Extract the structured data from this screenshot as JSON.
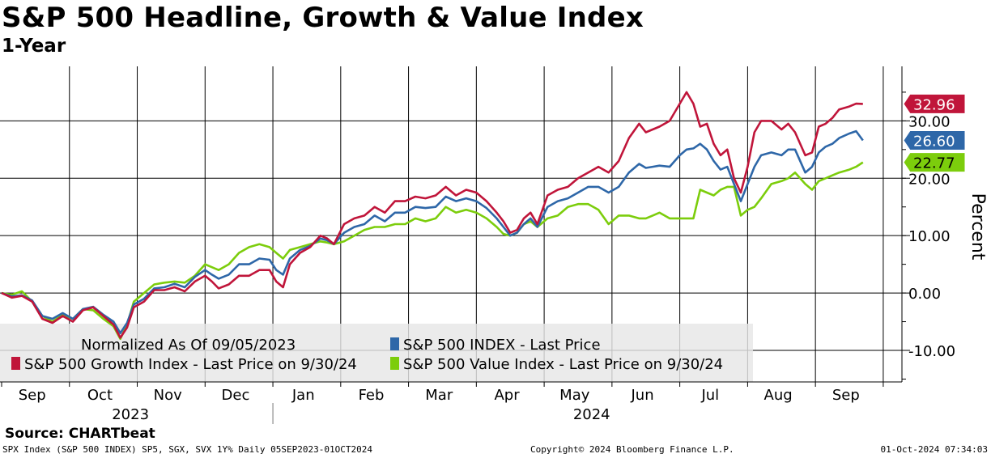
{
  "title": "S&P 500 Headline, Growth & Value Index",
  "subtitle": "1-Year",
  "source": "Source: CHARTbeat",
  "footer": {
    "left": "SPX Index (S&P 500 INDEX) SP5, SGX, SVX 1Y%  Daily 05SEP2023-01OCT2024",
    "center": "Copyright© 2024 Bloomberg Finance L.P.",
    "right": "01-Oct-2024 07:34:03"
  },
  "chart_data": {
    "type": "line",
    "title": "S&P 500 Headline, Growth & Value Index",
    "subtitle": "1-Year",
    "ylabel": "Percent",
    "ylim": [
      -15.5,
      39.5
    ],
    "yticks": [
      -10,
      0,
      10,
      20,
      30
    ],
    "ytick_labels": [
      "-10.00",
      "0.00",
      "10.00",
      "20.00",
      "30.00"
    ],
    "grid": true,
    "xlim": [
      0,
      13.1
    ],
    "month_ticks": [
      0,
      1,
      2,
      3,
      4,
      5,
      6,
      7,
      8,
      9,
      10,
      11,
      12,
      13
    ],
    "month_labels": [
      "Sep",
      "Oct",
      "Nov",
      "Dec",
      "Jan",
      "Feb",
      "Mar",
      "Apr",
      "May",
      "Jun",
      "Jul",
      "Aug",
      "Sep"
    ],
    "month_label_positions": [
      0.45,
      1.45,
      2.45,
      3.45,
      4.45,
      5.45,
      6.45,
      7.45,
      8.45,
      9.45,
      10.45,
      11.45,
      12.45
    ],
    "year_labels": [
      {
        "label": "2023",
        "x": 1.9
      },
      {
        "label": "2024",
        "x": 8.7
      }
    ],
    "year_divider_x": 4.0,
    "legend": {
      "position": "bottom-left",
      "note": "Normalized As Of 09/05/2023",
      "entries": [
        {
          "name": "S&P 500 INDEX - Last Price",
          "color": "#2e67a8"
        },
        {
          "name": "S&P 500 Growth Index - Last Price on 9/30/24",
          "color": "#c0153a"
        },
        {
          "name": "S&P 500 Value Index - Last Price on 9/30/24",
          "color": "#7ccd0c"
        }
      ]
    },
    "series": [
      {
        "name": "S&P 500 Growth Index - Last Price on 9/30/24",
        "color": "#c0153a",
        "last": 32.96,
        "last_label": "32.96",
        "points": [
          [
            0,
            0
          ],
          [
            0.15,
            -0.8
          ],
          [
            0.3,
            -0.5
          ],
          [
            0.45,
            -1.5
          ],
          [
            0.6,
            -4.5
          ],
          [
            0.75,
            -5.2
          ],
          [
            0.9,
            -4
          ],
          [
            1.05,
            -5
          ],
          [
            1.2,
            -3
          ],
          [
            1.35,
            -2.5
          ],
          [
            1.5,
            -4
          ],
          [
            1.65,
            -5.5
          ],
          [
            1.75,
            -7.8
          ],
          [
            1.85,
            -6
          ],
          [
            1.95,
            -2.5
          ],
          [
            2.1,
            -1.5
          ],
          [
            2.25,
            0.5
          ],
          [
            2.4,
            0.5
          ],
          [
            2.55,
            1
          ],
          [
            2.7,
            0.3
          ],
          [
            2.85,
            2
          ],
          [
            3.0,
            3
          ],
          [
            3.1,
            2
          ],
          [
            3.2,
            0.8
          ],
          [
            3.35,
            1.5
          ],
          [
            3.5,
            3
          ],
          [
            3.65,
            3
          ],
          [
            3.8,
            4
          ],
          [
            3.95,
            4
          ],
          [
            4.05,
            2
          ],
          [
            4.15,
            1
          ],
          [
            4.25,
            5
          ],
          [
            4.4,
            7
          ],
          [
            4.55,
            8
          ],
          [
            4.7,
            10
          ],
          [
            4.8,
            9.5
          ],
          [
            4.9,
            8.5
          ],
          [
            5.05,
            12
          ],
          [
            5.2,
            13
          ],
          [
            5.35,
            13.5
          ],
          [
            5.5,
            15
          ],
          [
            5.65,
            14
          ],
          [
            5.8,
            16
          ],
          [
            5.95,
            16
          ],
          [
            6.1,
            16.8
          ],
          [
            6.25,
            16.5
          ],
          [
            6.4,
            17
          ],
          [
            6.55,
            18.5
          ],
          [
            6.7,
            17
          ],
          [
            6.85,
            18
          ],
          [
            7.0,
            17.5
          ],
          [
            7.15,
            16
          ],
          [
            7.3,
            14
          ],
          [
            7.4,
            12.5
          ],
          [
            7.5,
            10.5
          ],
          [
            7.6,
            11
          ],
          [
            7.7,
            13
          ],
          [
            7.8,
            14
          ],
          [
            7.9,
            12
          ],
          [
            8.05,
            17
          ],
          [
            8.2,
            18
          ],
          [
            8.35,
            18.5
          ],
          [
            8.5,
            20
          ],
          [
            8.65,
            21
          ],
          [
            8.8,
            22
          ],
          [
            8.95,
            21
          ],
          [
            9.1,
            23
          ],
          [
            9.25,
            27
          ],
          [
            9.4,
            29.5
          ],
          [
            9.5,
            28
          ],
          [
            9.6,
            28.5
          ],
          [
            9.7,
            29
          ],
          [
            9.85,
            30
          ],
          [
            10.0,
            33
          ],
          [
            10.1,
            35
          ],
          [
            10.2,
            33
          ],
          [
            10.3,
            29
          ],
          [
            10.4,
            29.5
          ],
          [
            10.5,
            26
          ],
          [
            10.6,
            24
          ],
          [
            10.7,
            25
          ],
          [
            10.8,
            20
          ],
          [
            10.9,
            17.5
          ],
          [
            11.0,
            22
          ],
          [
            11.1,
            28
          ],
          [
            11.2,
            30
          ],
          [
            11.35,
            30
          ],
          [
            11.5,
            28.5
          ],
          [
            11.6,
            29.5
          ],
          [
            11.7,
            28
          ],
          [
            11.85,
            24
          ],
          [
            11.95,
            24.5
          ],
          [
            12.05,
            29
          ],
          [
            12.15,
            29.5
          ],
          [
            12.25,
            30.5
          ],
          [
            12.35,
            32
          ],
          [
            12.5,
            32.5
          ],
          [
            12.6,
            33
          ],
          [
            12.7,
            32.96
          ]
        ]
      },
      {
        "name": "S&P 500 INDEX - Last Price",
        "color": "#2e67a8",
        "last": 26.6,
        "last_label": "26.60",
        "points": [
          [
            0,
            0
          ],
          [
            0.15,
            -0.6
          ],
          [
            0.3,
            -0.4
          ],
          [
            0.45,
            -1.3
          ],
          [
            0.6,
            -4
          ],
          [
            0.75,
            -4.5
          ],
          [
            0.9,
            -3.5
          ],
          [
            1.05,
            -4.5
          ],
          [
            1.2,
            -2.8
          ],
          [
            1.35,
            -2.4
          ],
          [
            1.5,
            -3.8
          ],
          [
            1.65,
            -5
          ],
          [
            1.75,
            -7
          ],
          [
            1.85,
            -5.2
          ],
          [
            1.95,
            -2
          ],
          [
            2.1,
            -1
          ],
          [
            2.25,
            0.8
          ],
          [
            2.4,
            1
          ],
          [
            2.55,
            1.6
          ],
          [
            2.7,
            1
          ],
          [
            2.85,
            2.8
          ],
          [
            3.0,
            4
          ],
          [
            3.1,
            3.2
          ],
          [
            3.2,
            2.5
          ],
          [
            3.35,
            3.2
          ],
          [
            3.5,
            5
          ],
          [
            3.65,
            5
          ],
          [
            3.8,
            6
          ],
          [
            3.95,
            5.8
          ],
          [
            4.05,
            4
          ],
          [
            4.15,
            3.2
          ],
          [
            4.25,
            6
          ],
          [
            4.4,
            7.5
          ],
          [
            4.55,
            8.2
          ],
          [
            4.7,
            9.5
          ],
          [
            4.8,
            9.2
          ],
          [
            4.9,
            8.5
          ],
          [
            5.05,
            10.5
          ],
          [
            5.2,
            11.5
          ],
          [
            5.35,
            12
          ],
          [
            5.5,
            13.5
          ],
          [
            5.65,
            12.5
          ],
          [
            5.8,
            14
          ],
          [
            5.95,
            14
          ],
          [
            6.1,
            15
          ],
          [
            6.25,
            14.8
          ],
          [
            6.4,
            15
          ],
          [
            6.55,
            16.8
          ],
          [
            6.7,
            16
          ],
          [
            6.85,
            16.5
          ],
          [
            7.0,
            16
          ],
          [
            7.15,
            14.8
          ],
          [
            7.3,
            13
          ],
          [
            7.4,
            11.5
          ],
          [
            7.5,
            10
          ],
          [
            7.6,
            10.5
          ],
          [
            7.7,
            12
          ],
          [
            7.8,
            13
          ],
          [
            7.9,
            11.5
          ],
          [
            8.05,
            15
          ],
          [
            8.2,
            16
          ],
          [
            8.35,
            16.5
          ],
          [
            8.5,
            17.5
          ],
          [
            8.65,
            18.5
          ],
          [
            8.8,
            18.5
          ],
          [
            8.95,
            17.5
          ],
          [
            9.1,
            18.5
          ],
          [
            9.25,
            21
          ],
          [
            9.4,
            22.5
          ],
          [
            9.5,
            21.8
          ],
          [
            9.6,
            22
          ],
          [
            9.7,
            22.2
          ],
          [
            9.85,
            22
          ],
          [
            10.0,
            24
          ],
          [
            10.1,
            25
          ],
          [
            10.2,
            25.2
          ],
          [
            10.3,
            26
          ],
          [
            10.4,
            25
          ],
          [
            10.5,
            23
          ],
          [
            10.6,
            21.5
          ],
          [
            10.7,
            22
          ],
          [
            10.8,
            19
          ],
          [
            10.9,
            16
          ],
          [
            11.0,
            19
          ],
          [
            11.1,
            22
          ],
          [
            11.2,
            24
          ],
          [
            11.35,
            24.5
          ],
          [
            11.5,
            24
          ],
          [
            11.6,
            25
          ],
          [
            11.7,
            25
          ],
          [
            11.85,
            21
          ],
          [
            11.95,
            22
          ],
          [
            12.05,
            24.5
          ],
          [
            12.15,
            25.5
          ],
          [
            12.25,
            26
          ],
          [
            12.35,
            27
          ],
          [
            12.5,
            27.8
          ],
          [
            12.6,
            28.2
          ],
          [
            12.7,
            26.6
          ]
        ]
      },
      {
        "name": "S&P 500 Value Index - Last Price on 9/30/24",
        "color": "#7ccd0c",
        "last": 22.77,
        "last_label": "22.77",
        "points": [
          [
            0,
            0
          ],
          [
            0.15,
            -0.3
          ],
          [
            0.3,
            0.3
          ],
          [
            0.45,
            -1.5
          ],
          [
            0.6,
            -4
          ],
          [
            0.75,
            -5
          ],
          [
            0.9,
            -3.8
          ],
          [
            1.05,
            -4.5
          ],
          [
            1.2,
            -2.8
          ],
          [
            1.35,
            -3
          ],
          [
            1.5,
            -4.5
          ],
          [
            1.65,
            -5.8
          ],
          [
            1.75,
            -8
          ],
          [
            1.85,
            -5.5
          ],
          [
            1.95,
            -1.5
          ],
          [
            2.1,
            0
          ],
          [
            2.25,
            1.5
          ],
          [
            2.4,
            1.8
          ],
          [
            2.55,
            2
          ],
          [
            2.7,
            1.8
          ],
          [
            2.85,
            3
          ],
          [
            3.0,
            5
          ],
          [
            3.1,
            4.5
          ],
          [
            3.2,
            4
          ],
          [
            3.35,
            5
          ],
          [
            3.5,
            7
          ],
          [
            3.65,
            8
          ],
          [
            3.8,
            8.5
          ],
          [
            3.95,
            8
          ],
          [
            4.05,
            7
          ],
          [
            4.15,
            6
          ],
          [
            4.25,
            7.5
          ],
          [
            4.4,
            8
          ],
          [
            4.55,
            8.5
          ],
          [
            4.7,
            9
          ],
          [
            4.8,
            8.8
          ],
          [
            4.9,
            8.5
          ],
          [
            5.05,
            9
          ],
          [
            5.2,
            10
          ],
          [
            5.35,
            11
          ],
          [
            5.5,
            11.5
          ],
          [
            5.65,
            11.5
          ],
          [
            5.8,
            12
          ],
          [
            5.95,
            12
          ],
          [
            6.1,
            13
          ],
          [
            6.25,
            12.5
          ],
          [
            6.4,
            13
          ],
          [
            6.55,
            15
          ],
          [
            6.7,
            14
          ],
          [
            6.85,
            14.5
          ],
          [
            7.0,
            14
          ],
          [
            7.15,
            13
          ],
          [
            7.3,
            11.5
          ],
          [
            7.4,
            10.3
          ],
          [
            7.5,
            10
          ],
          [
            7.6,
            10.5
          ],
          [
            7.7,
            12
          ],
          [
            7.8,
            12.5
          ],
          [
            7.9,
            11.5
          ],
          [
            8.05,
            13
          ],
          [
            8.2,
            13.5
          ],
          [
            8.35,
            15
          ],
          [
            8.5,
            15.5
          ],
          [
            8.65,
            15.5
          ],
          [
            8.8,
            14.5
          ],
          [
            8.95,
            12
          ],
          [
            9.1,
            13.5
          ],
          [
            9.25,
            13.5
          ],
          [
            9.4,
            13
          ],
          [
            9.5,
            13
          ],
          [
            9.6,
            13.5
          ],
          [
            9.7,
            14
          ],
          [
            9.85,
            13
          ],
          [
            10.0,
            13
          ],
          [
            10.1,
            13
          ],
          [
            10.2,
            13
          ],
          [
            10.3,
            18
          ],
          [
            10.4,
            17.5
          ],
          [
            10.5,
            17
          ],
          [
            10.6,
            18
          ],
          [
            10.7,
            18.5
          ],
          [
            10.8,
            18.5
          ],
          [
            10.9,
            13.5
          ],
          [
            11.0,
            14.5
          ],
          [
            11.1,
            15
          ],
          [
            11.2,
            16.5
          ],
          [
            11.35,
            19
          ],
          [
            11.5,
            19.5
          ],
          [
            11.6,
            20
          ],
          [
            11.7,
            21
          ],
          [
            11.85,
            19
          ],
          [
            11.95,
            18
          ],
          [
            12.05,
            19.5
          ],
          [
            12.15,
            20
          ],
          [
            12.25,
            20.5
          ],
          [
            12.35,
            21
          ],
          [
            12.5,
            21.5
          ],
          [
            12.6,
            22
          ],
          [
            12.7,
            22.77
          ]
        ]
      }
    ]
  }
}
